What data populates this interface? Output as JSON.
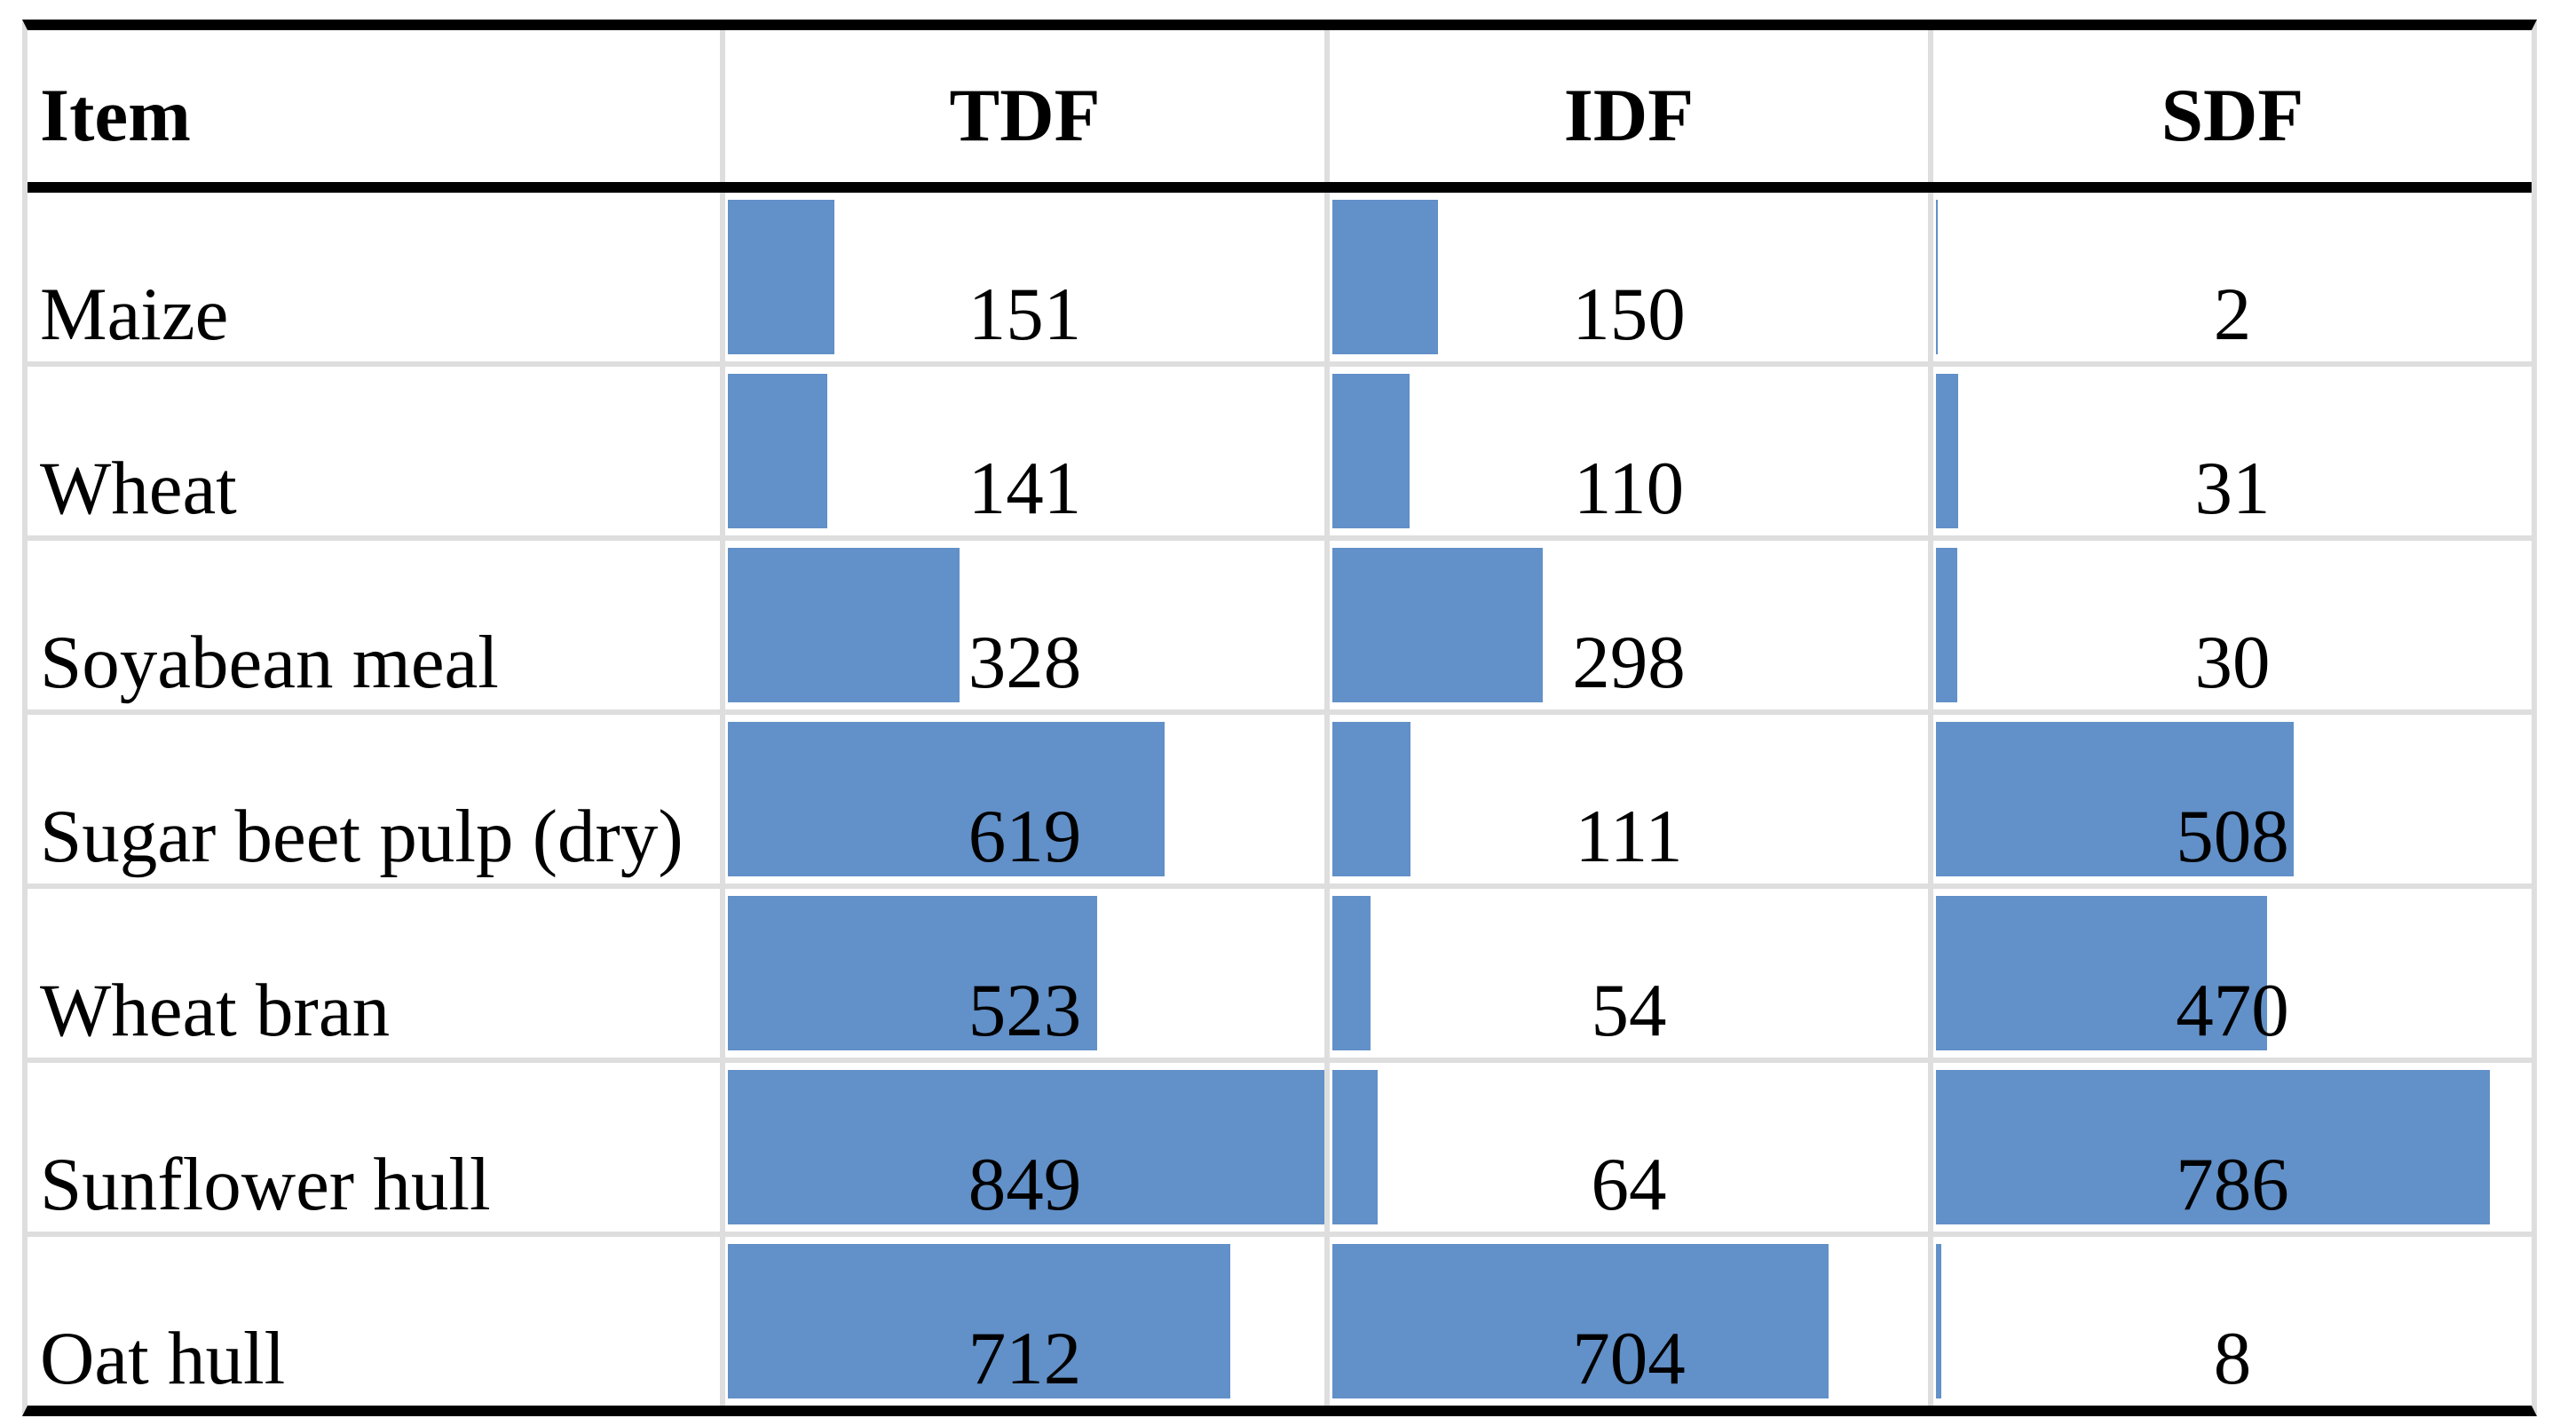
{
  "table": {
    "columns": [
      "Item",
      "TDF",
      "IDF",
      "SDF"
    ],
    "bar_color": "#6290C8",
    "grid_color": "#DEDEDE",
    "rule_color": "#000000"
  },
  "chart_data": {
    "type": "table",
    "title": "Fibre fractions by feed item with in-cell data bars",
    "categories": [
      "Maize",
      "Wheat",
      "Soyabean meal",
      "Sugar beet pulp (dry)",
      "Wheat bran",
      "Sunflower hull",
      "Oat hull"
    ],
    "series": [
      {
        "name": "TDF",
        "values": [
          151,
          141,
          328,
          619,
          523,
          849,
          712
        ]
      },
      {
        "name": "IDF",
        "values": [
          150,
          110,
          298,
          111,
          54,
          64,
          704
        ]
      },
      {
        "name": "SDF",
        "values": [
          2,
          31,
          30,
          508,
          470,
          786,
          8
        ]
      }
    ],
    "bar_axis_max": 849,
    "bar_axis_min": 0,
    "legend_position": "none",
    "grid": true
  }
}
